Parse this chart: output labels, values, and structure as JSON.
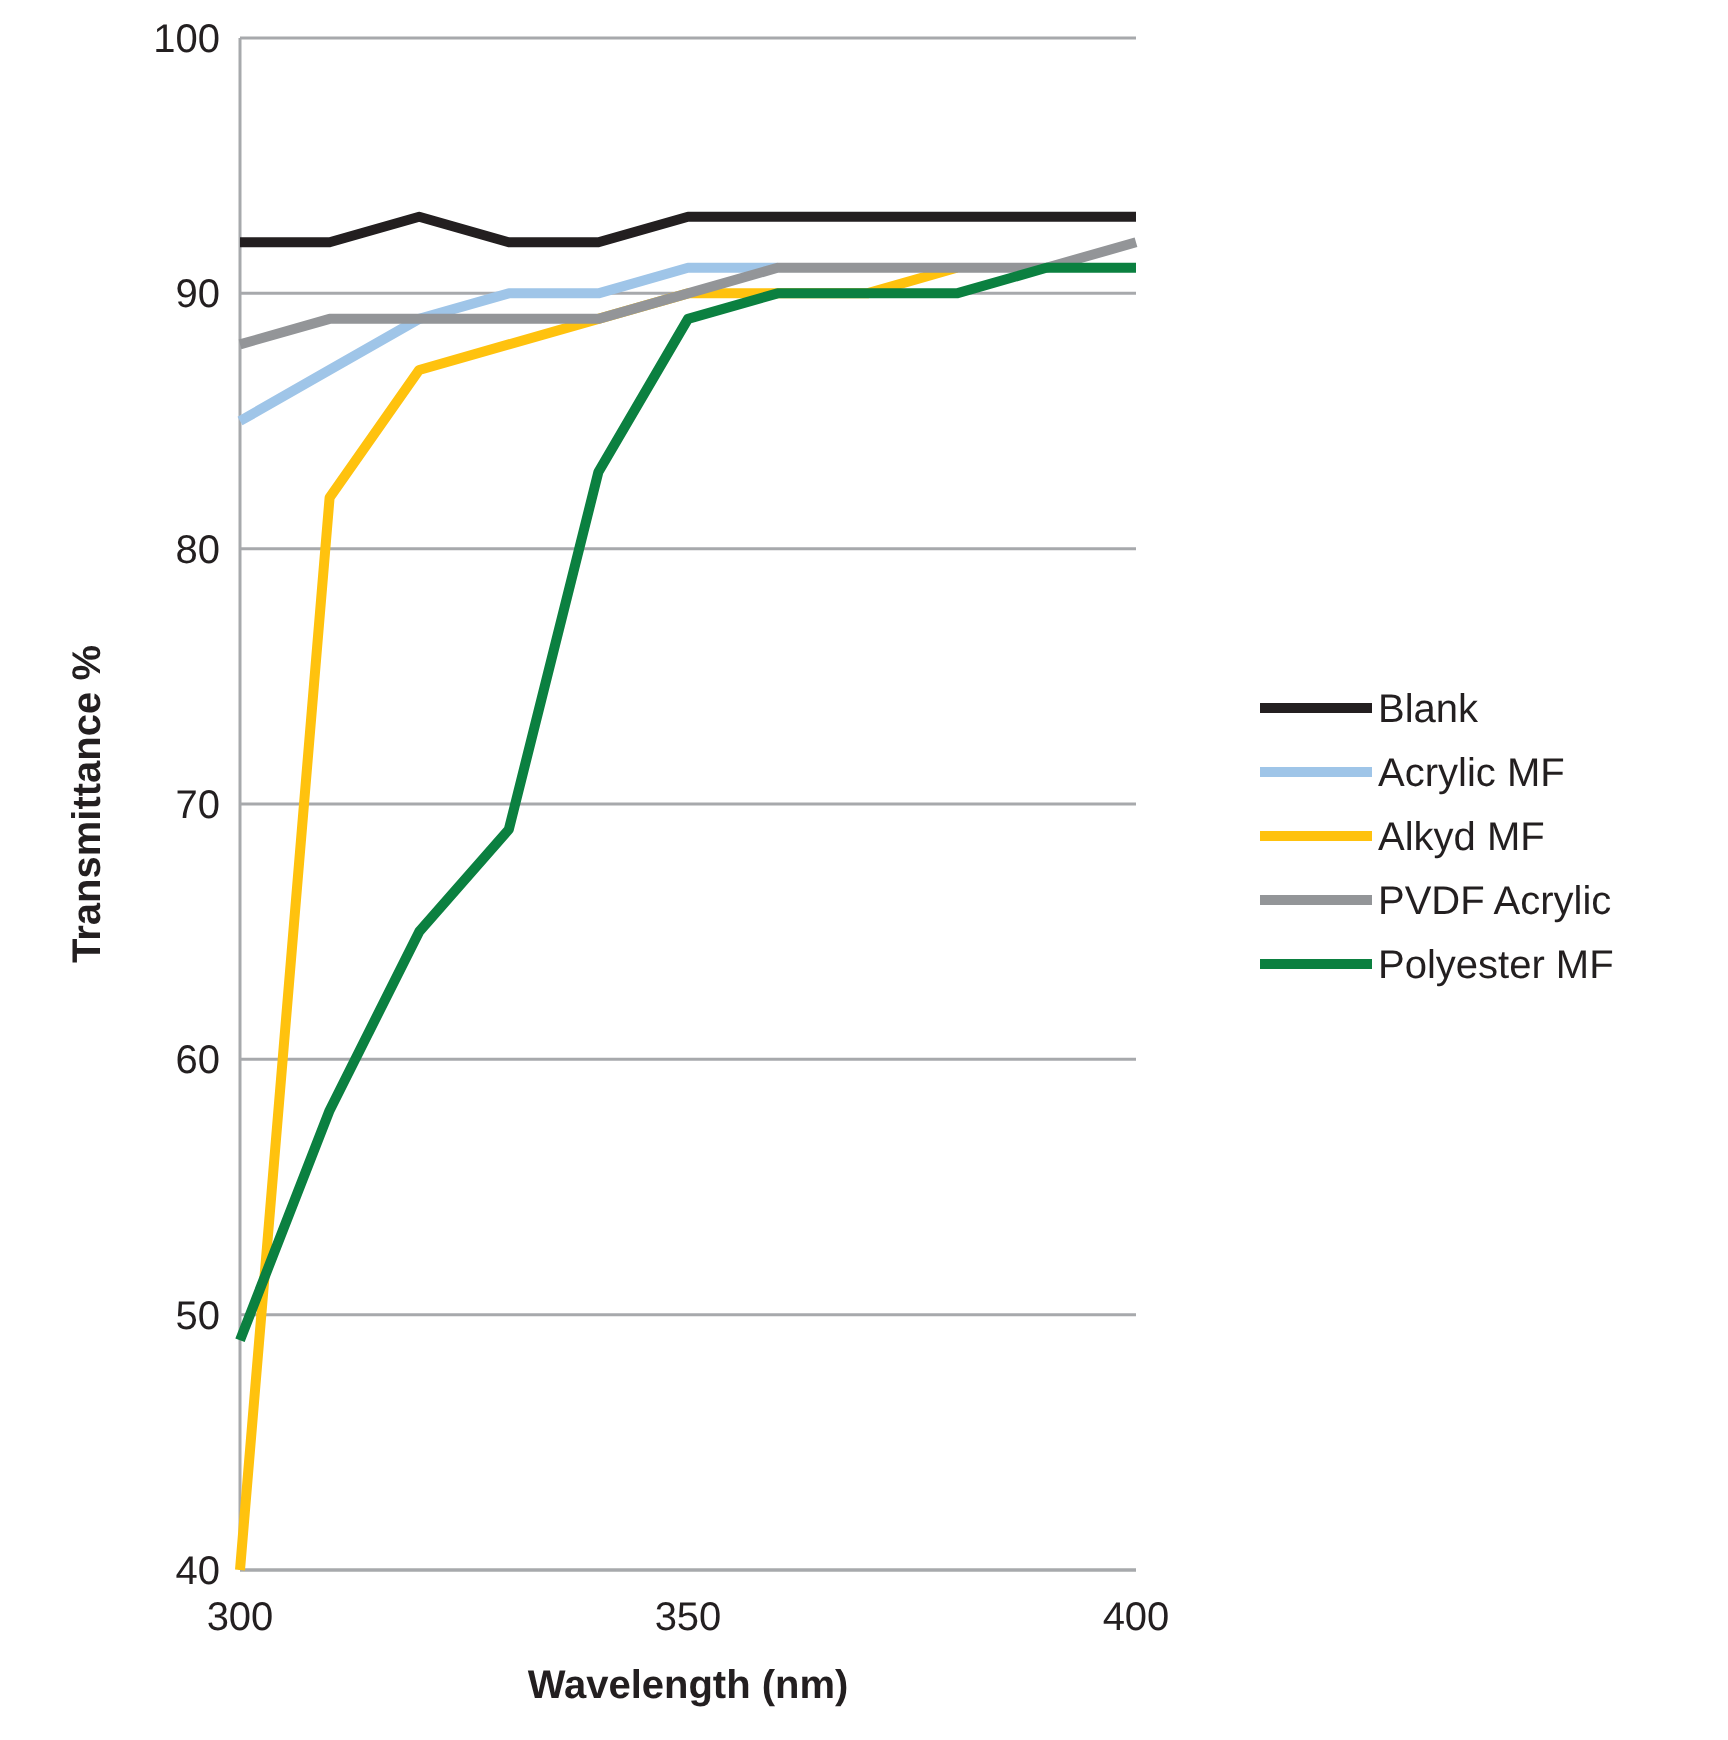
{
  "chart_data": {
    "type": "line",
    "xlabel": "Wavelength (nm)",
    "ylabel": "Transmittance %",
    "x": [
      300,
      310,
      320,
      330,
      340,
      350,
      360,
      370,
      380,
      390,
      400
    ],
    "xlim": [
      300,
      400
    ],
    "xticks": [
      300,
      350,
      400
    ],
    "ylim": [
      40,
      100
    ],
    "yticks": [
      40,
      50,
      60,
      70,
      80,
      90,
      100
    ],
    "grid": "y",
    "legend": "right",
    "marker": "none",
    "line_style": "solid",
    "series": [
      {
        "name": "Blank",
        "color": "#231f20",
        "values": [
          92,
          92,
          93,
          92,
          92,
          93,
          93,
          93,
          93,
          93,
          93
        ]
      },
      {
        "name": "Acrylic MF",
        "color": "#9fc5e8",
        "values": [
          85,
          87,
          89,
          90,
          90,
          91,
          91,
          null,
          null,
          null,
          null
        ]
      },
      {
        "name": "Alkyd MF",
        "color": "#ffc20e",
        "values": [
          40,
          82,
          87,
          88,
          89,
          90,
          90,
          90,
          91,
          null,
          null
        ]
      },
      {
        "name": "PVDF Acrylic",
        "color": "#939598",
        "values": [
          88,
          89,
          89,
          89,
          89,
          90,
          91,
          91,
          91,
          91,
          92
        ]
      },
      {
        "name": "Polyester MF",
        "color": "#0b8040",
        "values": [
          49,
          58,
          65,
          69,
          83,
          89,
          90,
          90,
          90,
          91,
          91
        ]
      }
    ]
  }
}
